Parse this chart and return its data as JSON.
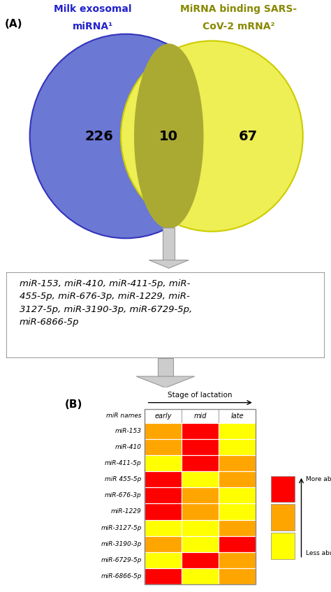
{
  "panel_A_label": "(A)",
  "panel_B_label": "(B)",
  "circle_blue_label_line1": "Milk exosomal",
  "circle_blue_label_line2": "miRNA¹",
  "circle_yellow_label_line1": "MiRNA binding SARS-",
  "circle_yellow_label_line2": "CoV-2 mRNA²",
  "circle_blue_color": "#6B78D4",
  "circle_yellow_color": "#EEEE55",
  "circle_blue_edge": "#3333BB",
  "circle_yellow_edge": "#CCCC00",
  "overlap_color": "#AAAA33",
  "num_left": "226",
  "num_center": "10",
  "num_right": "67",
  "arrow_color": "#AAAAAA",
  "arrow_body_color": "#CCCCCC",
  "mirna_lines": [
    "miR-153, miR-410, miR-411-5p, miR-",
    "455-5p, miR-676-3p, miR-1229, miR-",
    "3127-5p, miR-3190-3p, miR-6729-5p,",
    "miR-6866-5p"
  ],
  "heatmap_title": "Stage of lactation",
  "heatmap_col_labels": [
    "early",
    "mid",
    "late"
  ],
  "heatmap_row_labels": [
    "miR names",
    "miR-153",
    "miR-410",
    "miR-411-5p",
    "miR 455-5p",
    "miR-676-3p",
    "miR-1229",
    "miR-3127-5p",
    "miR-3190-3p",
    "miR-6729-5p",
    "miR-6866-5p"
  ],
  "heatmap_colors": [
    [
      "#FFA500",
      "#FF0000",
      "#FFFF00"
    ],
    [
      "#FFA500",
      "#FF0000",
      "#FFFF00"
    ],
    [
      "#FFFF00",
      "#FF0000",
      "#FFA500"
    ],
    [
      "#FF0000",
      "#FFFF00",
      "#FFA500"
    ],
    [
      "#FF0000",
      "#FFA500",
      "#FFFF00"
    ],
    [
      "#FF0000",
      "#FFA500",
      "#FFFF00"
    ],
    [
      "#FFFF00",
      "#FFFF00",
      "#FFA500"
    ],
    [
      "#FFA500",
      "#FFFF00",
      "#FF0000"
    ],
    [
      "#FFFF00",
      "#FF0000",
      "#FFA500"
    ],
    [
      "#FF0000",
      "#FFFF00",
      "#FFA500"
    ]
  ],
  "legend_colors": [
    "#FF0000",
    "#FFA500",
    "#FFFF00"
  ],
  "legend_labels": [
    "More abundant",
    "Less abundant"
  ],
  "background_color": "#FFFFFF",
  "blue_label_color": "#2222CC",
  "yellow_label_color": "#888800"
}
